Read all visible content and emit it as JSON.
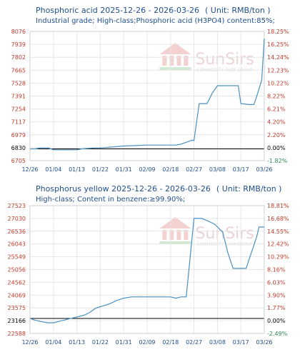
{
  "watermark": {
    "brand": "SunSirs",
    "tagline": "COMMODITY DATA GROUP"
  },
  "chart_data": [
    {
      "type": "line",
      "title": "Phosphoric acid 2025-12-26 - 2026-03-26",
      "unit": "( Unit: RMB/ton )",
      "subtitle": "Industrial grade; High-class;Phosphoric acid (H3PO4) content:85%;",
      "yticks_left": [
        "8076",
        "7939",
        "7802",
        "7665",
        "7528",
        "7391",
        "7254",
        "7117",
        "6979",
        "6830",
        "6705"
      ],
      "yticks_right": [
        "18.25%",
        "16.25%",
        "14.24%",
        "12.23%",
        "10.22%",
        "8.22%",
        "6.21%",
        "4.20%",
        "2.20%",
        "0.00%",
        "-1.82%"
      ],
      "ylim": [
        6705,
        8076
      ],
      "base_value": 6830,
      "xticks": [
        "12/26",
        "01/04",
        "01/13",
        "01/22",
        "01/31",
        "02/09",
        "02/18",
        "02/27",
        "03/08",
        "03/17",
        "03/26"
      ],
      "x": [
        "12/26",
        "12/28",
        "12/30",
        "01/01",
        "01/02",
        "01/04",
        "01/08",
        "01/10",
        "01/13",
        "01/15",
        "01/20",
        "01/22",
        "01/31",
        "02/09",
        "02/18",
        "02/20",
        "02/22",
        "02/24",
        "02/26",
        "02/27",
        "03/01",
        "03/04",
        "03/06",
        "03/08",
        "03/10",
        "03/12",
        "03/14",
        "03/16",
        "03/17",
        "03/20",
        "03/22",
        "03/23",
        "03/25",
        "03/26"
      ],
      "values": [
        6830,
        6830,
        6840,
        6840,
        6840,
        6820,
        6820,
        6820,
        6820,
        6830,
        6840,
        6840,
        6860,
        6870,
        6870,
        6870,
        6880,
        6900,
        6920,
        6920,
        7310,
        7310,
        7420,
        7500,
        7500,
        7500,
        7500,
        7500,
        7310,
        7300,
        7300,
        7380,
        7560,
        8000
      ]
    },
    {
      "type": "line",
      "title": "Phosphorus yellow 2025-12-26 - 2026-03-26",
      "unit": "( Unit: RMB/ton )",
      "subtitle": "High-class; Content in benzene:≥99.90%;",
      "yticks_left": [
        "27523",
        "27030",
        "26536",
        "26043",
        "25549",
        "25056",
        "24562",
        "24069",
        "23575",
        "23166",
        "22588"
      ],
      "yticks_right": [
        "18.81%",
        "16.68%",
        "14.55%",
        "12.42%",
        "10.29%",
        "8.16%",
        "6.03%",
        "3.90%",
        "1.77%",
        "0.00%",
        "-2.49%"
      ],
      "ylim": [
        22588,
        27523
      ],
      "base_value": 23166,
      "xticks": [
        "12/26",
        "01/04",
        "01/13",
        "01/22",
        "01/31",
        "02/09",
        "02/18",
        "02/27",
        "03/08",
        "03/17",
        "03/26"
      ],
      "x": [
        "12/26",
        "12/28",
        "12/30",
        "01/02",
        "01/04",
        "01/06",
        "01/08",
        "01/10",
        "01/12",
        "01/14",
        "01/16",
        "01/18",
        "01/20",
        "01/22",
        "01/24",
        "01/26",
        "01/28",
        "01/31",
        "02/03",
        "02/09",
        "02/18",
        "02/20",
        "02/22",
        "02/24",
        "02/27",
        "02/28",
        "03/02",
        "03/05",
        "03/07",
        "03/10",
        "03/12",
        "03/14",
        "03/16",
        "03/19",
        "03/21",
        "03/23",
        "03/24",
        "03/26"
      ],
      "values": [
        23166,
        23100,
        23050,
        23000,
        23000,
        23050,
        23100,
        23150,
        23200,
        23250,
        23300,
        23400,
        23550,
        23620,
        23680,
        23750,
        23850,
        23950,
        24000,
        24000,
        24000,
        23950,
        24000,
        24000,
        27030,
        27030,
        27030,
        26900,
        26800,
        26500,
        25700,
        25100,
        25100,
        25100,
        25700,
        26300,
        26700,
        26700
      ]
    }
  ]
}
